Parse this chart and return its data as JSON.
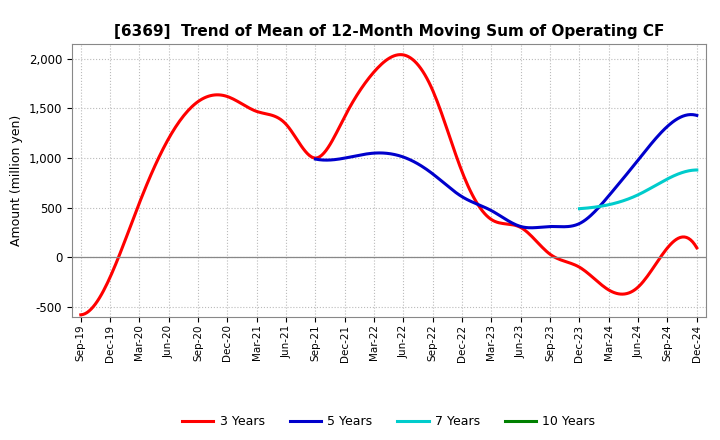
{
  "title": "[6369]  Trend of Mean of 12-Month Moving Sum of Operating CF",
  "ylabel": "Amount (million yen)",
  "background_color": "#ffffff",
  "plot_bg_color": "#ffffff",
  "grid_color": "#bbbbbb",
  "ylim": [
    -600,
    2150
  ],
  "yticks": [
    -500,
    0,
    500,
    1000,
    1500,
    2000
  ],
  "x_labels": [
    "Sep-19",
    "Dec-19",
    "Mar-20",
    "Jun-20",
    "Sep-20",
    "Dec-20",
    "Mar-21",
    "Jun-21",
    "Sep-21",
    "Dec-21",
    "Mar-22",
    "Jun-22",
    "Sep-22",
    "Dec-22",
    "Mar-23",
    "Jun-23",
    "Sep-23",
    "Dec-23",
    "Mar-24",
    "Jun-24",
    "Sep-24",
    "Dec-24"
  ],
  "series": {
    "3 Years": {
      "color": "#ff0000",
      "linewidth": 2.2,
      "data_x": [
        0,
        1,
        2,
        3,
        4,
        5,
        6,
        7,
        8,
        9,
        10,
        11,
        12,
        13,
        14,
        15,
        16,
        17,
        18,
        19,
        20,
        21
      ],
      "data_y": [
        -580,
        -200,
        550,
        1200,
        1570,
        1620,
        1470,
        1340,
        1000,
        1420,
        1870,
        2040,
        1680,
        860,
        380,
        300,
        30,
        -100,
        -330,
        -300,
        95,
        95
      ]
    },
    "5 Years": {
      "color": "#0000cc",
      "linewidth": 2.2,
      "data_x": [
        8,
        9,
        10,
        11,
        12,
        13,
        14,
        15,
        16,
        17,
        18,
        19,
        20,
        21
      ],
      "data_y": [
        990,
        1000,
        1050,
        1010,
        840,
        610,
        470,
        310,
        310,
        340,
        620,
        980,
        1320,
        1430
      ]
    },
    "7 Years": {
      "color": "#00cccc",
      "linewidth": 2.2,
      "data_x": [
        17,
        18,
        19,
        20,
        21
      ],
      "data_y": [
        490,
        530,
        630,
        790,
        880
      ]
    },
    "10 Years": {
      "color": "#008000",
      "linewidth": 2.2,
      "data_x": [],
      "data_y": []
    }
  },
  "legend_entries": [
    "3 Years",
    "5 Years",
    "7 Years",
    "10 Years"
  ],
  "legend_colors": [
    "#ff0000",
    "#0000cc",
    "#00cccc",
    "#008000"
  ]
}
